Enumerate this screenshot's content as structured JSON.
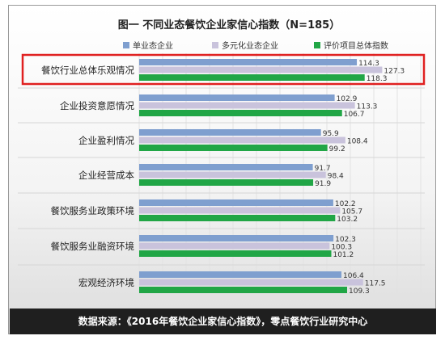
{
  "chart_data": {
    "type": "bar",
    "orientation": "horizontal",
    "title": "图一 不同业态餐饮企业家信心指数（N=185）",
    "categories": [
      "餐饮行业总体乐观情况",
      "企业投资意愿情况",
      "企业盈利情况",
      "企业经营成本",
      "餐饮服务业政策环境",
      "餐饮服务业融资环境",
      "宏观经济环境"
    ],
    "series": [
      {
        "name": "单业态企业",
        "color": "#7f9fcf",
        "values": [
          114.3,
          102.9,
          95.9,
          91.7,
          102.2,
          102.3,
          106.4
        ]
      },
      {
        "name": "多元化业态企业",
        "color": "#c9c3dc",
        "values": [
          127.3,
          113.3,
          108.4,
          98.4,
          105.7,
          100.3,
          117.5
        ]
      },
      {
        "name": "评价项目总体指数",
        "color": "#21a646",
        "values": [
          118.3,
          106.7,
          99.2,
          91.9,
          103.2,
          101.2,
          109.3
        ]
      }
    ],
    "legend_position": "top",
    "highlighted_category": "餐饮行业总体乐观情况",
    "highlight_color": "#e02020",
    "grid": true
  },
  "footer": {
    "source": "数据来源：《2016年餐饮企业家信心指数》，零点餐饮行业研究中心"
  }
}
